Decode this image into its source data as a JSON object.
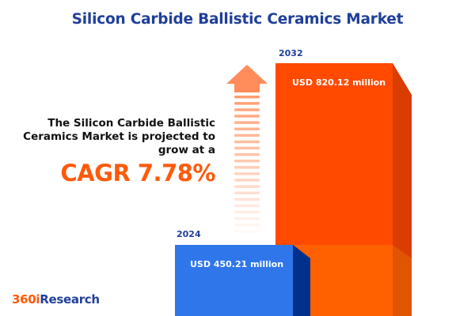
{
  "title": "Silicon Carbide Ballistic Ceramics Market",
  "description": "The Silicon Carbide Ballistic Ceramics Market is projected to grow at a",
  "cagr_label": "CAGR 7.78%",
  "logo": {
    "part1": "360i",
    "part2": "Research"
  },
  "colors": {
    "bar_2024": "#2f76ea",
    "bar_2024_side": "#00318c",
    "bar_2032": "#ff4a00",
    "bar_2032_side": "#d93d00",
    "overlap": "#ff6000",
    "arrow": "#ff8c5a",
    "title": "#1f3f99",
    "accent": "#ff5a0a"
  },
  "chart_data": {
    "type": "bar",
    "categories": [
      "2024",
      "2032"
    ],
    "values": [
      450.21,
      820.12
    ],
    "unit": "USD million",
    "data_labels": [
      "USD 450.21 million",
      "USD 820.12 million"
    ],
    "cagr": 7.78,
    "grid": false,
    "legend": "none"
  }
}
